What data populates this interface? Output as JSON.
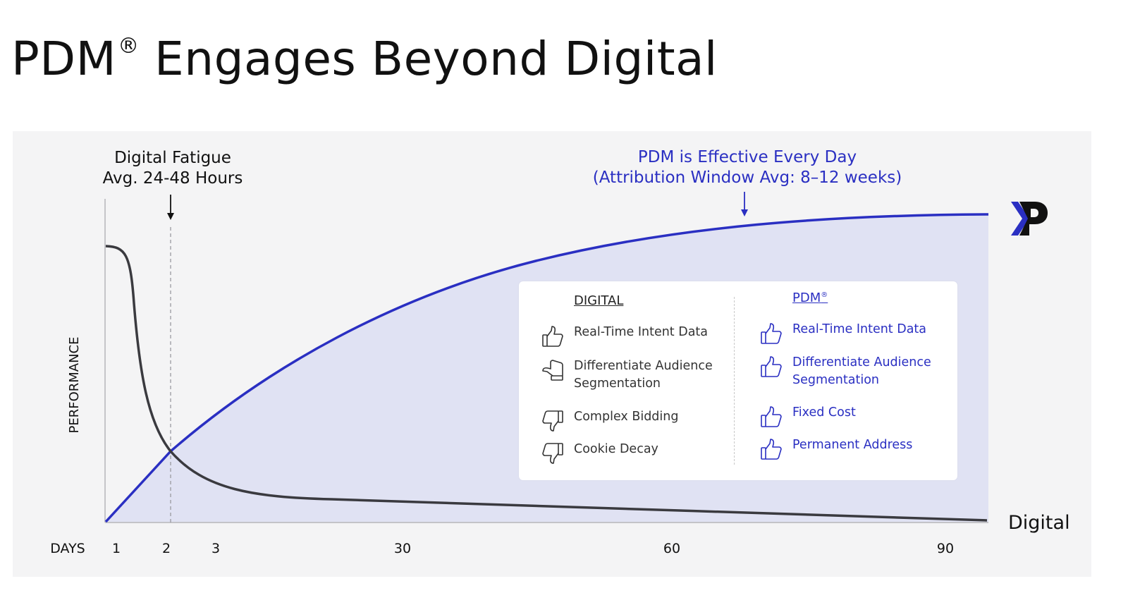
{
  "title": {
    "text": "PDM",
    "mark": "®",
    "rest": " Engages Beyond Digital"
  },
  "annotations": {
    "digital_fatigue": [
      "Digital Fatigue",
      "Avg. 24-48 Hours"
    ],
    "pdm_effective": [
      "PDM is Effective Every Day",
      "(Attribution Window Avg: 8–12 weeks)"
    ]
  },
  "chart_data": {
    "type": "line",
    "xlabel": "DAYS",
    "ylabel": "PERFORMANCE",
    "x_ticks": [
      "1",
      "2",
      "3",
      "30",
      "60",
      "90"
    ],
    "grid": false,
    "series": [
      {
        "name": "Digital",
        "trend": "drops steeply after day 1, then decays slowly toward zero"
      },
      {
        "name": "",
        "trend": "rises from zero and plateaus near the top by day 90"
      }
    ],
    "colors": {
      "digital": "#3a3a3f",
      "pdm": "#2a2fc2",
      "pdm_fill": "#e0e2f3"
    }
  },
  "comparison": {
    "digital": {
      "heading": "DIGITAL",
      "items": [
        {
          "label": "Real-Time Intent Data",
          "icon": "thumbs-up-icon"
        },
        {
          "label": "Differentiate Audience Segmentation",
          "icon": "thumbs-sideways-icon"
        },
        {
          "label": "Complex Bidding",
          "icon": "thumbs-down-icon"
        },
        {
          "label": "Cookie Decay",
          "icon": "thumbs-down-icon"
        }
      ]
    },
    "pdm": {
      "heading": "PDM",
      "mark": "®",
      "items": [
        {
          "label": "Real-Time Intent Data",
          "icon": "thumbs-up-icon"
        },
        {
          "label": "Differentiate Audience Segmentation",
          "icon": "thumbs-up-icon"
        },
        {
          "label": "Fixed Cost",
          "icon": "thumbs-up-icon"
        },
        {
          "label": "Permanent Address",
          "icon": "thumbs-up-icon"
        }
      ]
    }
  }
}
